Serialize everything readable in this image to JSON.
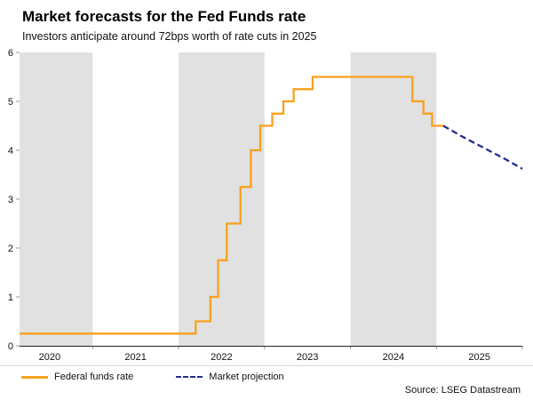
{
  "header": {
    "title": "Market forecasts for the Fed Funds rate",
    "subtitle": "Investors anticipate around 72bps worth of rate cuts in 2025"
  },
  "footer": {
    "source": "Source: LSEG Datastream"
  },
  "chart_data": {
    "type": "line",
    "title": "Market forecasts for the Fed Funds rate",
    "subtitle": "Investors anticipate around 72bps worth of rate cuts in 2025",
    "xlabel": "",
    "ylabel": "",
    "xlim": [
      2020.15,
      2026.0
    ],
    "ylim": [
      0,
      6
    ],
    "y_ticks": [
      0,
      1,
      2,
      3,
      4,
      5,
      6
    ],
    "x_ticks": [
      2020,
      2021,
      2022,
      2023,
      2024,
      2025
    ],
    "grid": false,
    "legend_position": "bottom-left",
    "band_color": "#e1e1e1",
    "axis_color": "#222222",
    "shaded_year_bands": [
      [
        2020.15,
        2021.0
      ],
      [
        2022.0,
        2023.0
      ],
      [
        2024.0,
        2025.0
      ]
    ],
    "series": [
      {
        "name": "Federal funds rate",
        "color": "#f9a11d",
        "line_style": "solid",
        "points": [
          [
            2020.15,
            0.25
          ],
          [
            2022.2,
            0.25
          ],
          [
            2022.2,
            0.5
          ],
          [
            2022.37,
            0.5
          ],
          [
            2022.37,
            1.0
          ],
          [
            2022.46,
            1.0
          ],
          [
            2022.46,
            1.75
          ],
          [
            2022.56,
            1.75
          ],
          [
            2022.56,
            2.5
          ],
          [
            2022.72,
            2.5
          ],
          [
            2022.72,
            3.25
          ],
          [
            2022.84,
            3.25
          ],
          [
            2022.84,
            4.0
          ],
          [
            2022.95,
            4.0
          ],
          [
            2022.95,
            4.5
          ],
          [
            2023.09,
            4.5
          ],
          [
            2023.09,
            4.75
          ],
          [
            2023.22,
            4.75
          ],
          [
            2023.22,
            5.0
          ],
          [
            2023.34,
            5.0
          ],
          [
            2023.34,
            5.25
          ],
          [
            2023.56,
            5.25
          ],
          [
            2023.56,
            5.5
          ],
          [
            2024.72,
            5.5
          ],
          [
            2024.72,
            5.0
          ],
          [
            2024.85,
            5.0
          ],
          [
            2024.85,
            4.75
          ],
          [
            2024.95,
            4.75
          ],
          [
            2024.95,
            4.5
          ],
          [
            2025.08,
            4.5
          ]
        ]
      },
      {
        "name": "Market projection",
        "color": "#222e8f",
        "line_style": "dashed",
        "points": [
          [
            2025.08,
            4.5
          ],
          [
            2025.3,
            4.28
          ],
          [
            2025.55,
            4.05
          ],
          [
            2025.8,
            3.82
          ],
          [
            2026.0,
            3.62
          ]
        ]
      }
    ]
  }
}
